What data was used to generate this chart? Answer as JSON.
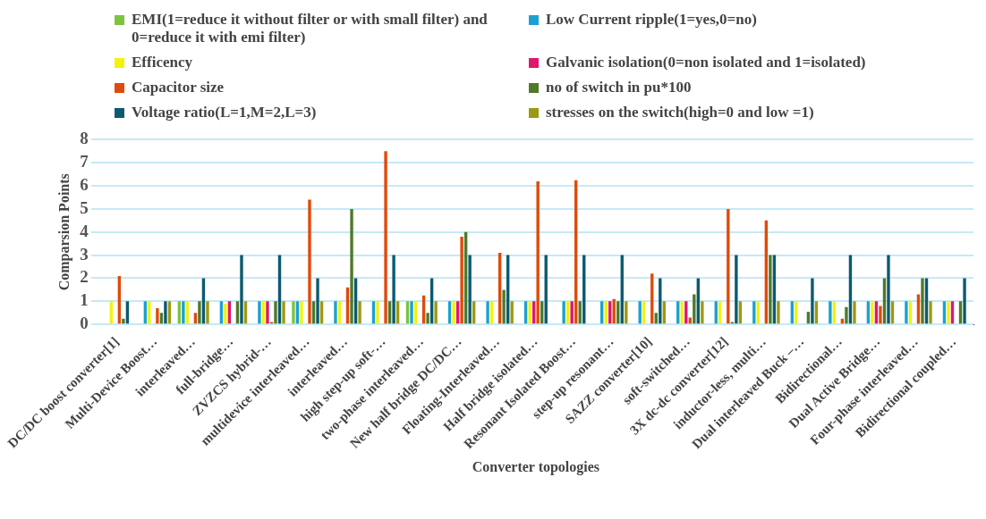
{
  "chart_data": {
    "type": "bar",
    "xlabel": "Converter topologies",
    "ylabel": "Comparsion Points",
    "categories": [
      "DC/DC boost converter[1]",
      "Multi-Device Boost…",
      "interleaved…",
      "full-bridge…",
      "ZVZCS hybrid-…",
      "multidevice interleaved…",
      "interleaved…",
      "high step-up soft-…",
      "two-phase interleaved…",
      "New half bridge DC/DC…",
      "Floating-Interleaved…",
      "Half bridge isolated…",
      "Resonant Isolated Boost…",
      "step-up resonant…",
      "SAZZ converter[10]",
      "soft-switched…",
      "3X dc-dc converter[12]",
      "inductor-less, multi…",
      "Dual interleaved Buck –…",
      "Bidirectional…",
      "Dual Active Bridge…",
      "Four-phase interleaved…",
      "Bidirectional coupled…"
    ],
    "series": [
      {
        "name": "EMI(1=reduce it without filter or with small filter) and 0=reduce it with emi filter)",
        "color": "#7dc242",
        "values": [
          0,
          0,
          1,
          0,
          0,
          1,
          0,
          0,
          1,
          0,
          0,
          0,
          0,
          0,
          0,
          0,
          0,
          0,
          0,
          0,
          0,
          0,
          0
        ]
      },
      {
        "name": "Low Current ripple(1=yes,0=no)",
        "color": "#1ba1d1",
        "values": [
          0,
          1,
          1,
          1,
          1,
          1,
          1,
          1,
          1,
          1,
          1,
          1,
          1,
          1,
          1,
          1,
          1,
          1,
          1,
          1,
          1,
          1,
          1
        ]
      },
      {
        "name": "Efficency",
        "color": "#f2f20f",
        "values": [
          1,
          1,
          1,
          0.9,
          1,
          1,
          1,
          1,
          1,
          1,
          1,
          1,
          1,
          1,
          1,
          1,
          1,
          1,
          1,
          1,
          1,
          1,
          1
        ]
      },
      {
        "name": "Galvanic isolation(0=non isolated and 1=isolated)",
        "color": "#e0176a",
        "values": [
          0,
          0,
          0,
          1,
          1,
          0,
          0,
          0,
          0,
          1,
          0,
          1,
          1,
          1,
          0,
          1,
          0,
          0,
          0,
          0,
          1,
          0,
          1
        ]
      },
      {
        "name": "Capacitor size",
        "color": "#e04a0a",
        "values": [
          2.1,
          0.7,
          0.5,
          0,
          0.1,
          5.4,
          1.6,
          7.5,
          1.25,
          3.8,
          3.1,
          6.2,
          6.25,
          1.1,
          2.2,
          0.3,
          5,
          4.5,
          0,
          0.25,
          0.8,
          1.3,
          0
        ]
      },
      {
        "name": "no of switch in pu*100",
        "color": "#4e7a2a",
        "values": [
          0.25,
          0.5,
          1,
          1,
          1,
          1,
          5,
          1,
          0.5,
          4,
          1.5,
          1,
          1,
          1,
          0.5,
          1.3,
          0.1,
          3,
          0.55,
          0.75,
          2,
          2,
          1
        ]
      },
      {
        "name": "Voltage ratio(L=1,M=2,L=3)",
        "color": "#0b5a70",
        "values": [
          1,
          1,
          2,
          3,
          3,
          2,
          2,
          3,
          2,
          3,
          3,
          3,
          3,
          3,
          2,
          2,
          3,
          3,
          2,
          3,
          3,
          2,
          2
        ]
      },
      {
        "name": "stresses on the switch(high=0 and low =1)",
        "color": "#9c9a12",
        "values": [
          0,
          1,
          1,
          1,
          1,
          1,
          1,
          1,
          1,
          1,
          1,
          0,
          0,
          1,
          1,
          1,
          1,
          1,
          1,
          1,
          1,
          1,
          0
        ]
      }
    ],
    "ylim": [
      0,
      8
    ],
    "yticks": [
      0,
      1,
      2,
      3,
      4,
      5,
      6,
      7,
      8
    ],
    "grid": "y",
    "legend": "top"
  }
}
